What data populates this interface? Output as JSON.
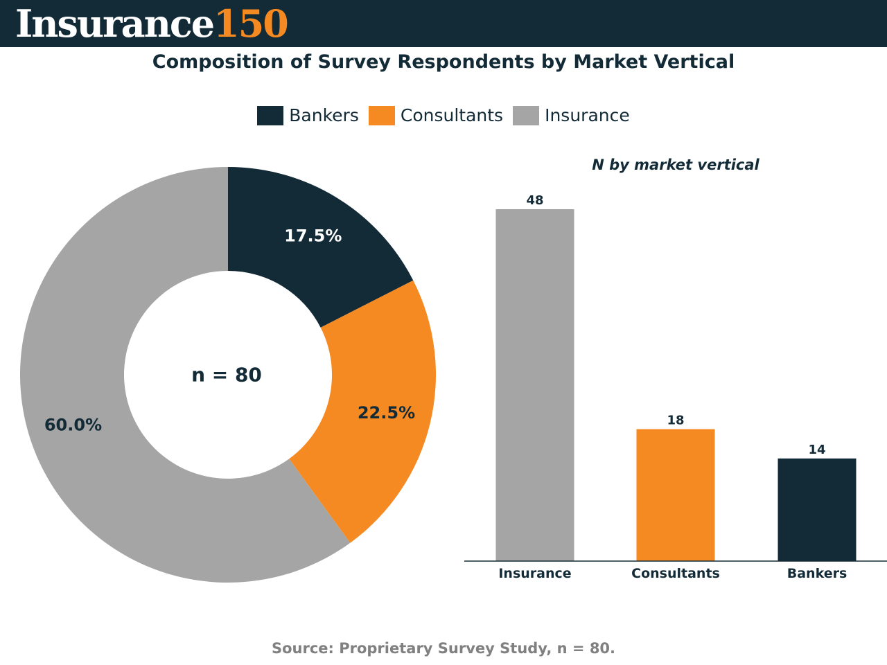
{
  "header": {
    "logo_word": "Insurance",
    "logo_number": "150"
  },
  "colors": {
    "navy": "#132a37",
    "orange": "#f68a22",
    "gray": "#a5a5a5",
    "source_gray": "#808080"
  },
  "chart_data": [
    {
      "type": "pie",
      "title": "Composition of Survey Respondents by Market Vertical",
      "center_label": "n = 80",
      "legend": [
        "Bankers",
        "Consultants",
        "Insurance"
      ],
      "legend_placement": "top",
      "slices": [
        {
          "name": "Bankers",
          "value": 17.5,
          "label": "17.5%",
          "color": "#132a37",
          "label_color": "#ffffff"
        },
        {
          "name": "Consultants",
          "value": 22.5,
          "label": "22.5%",
          "color": "#f68a22",
          "label_color": "#132a37"
        },
        {
          "name": "Insurance",
          "value": 60.0,
          "label": "60.0%",
          "color": "#a5a5a5",
          "label_color": "#132a37"
        }
      ]
    },
    {
      "type": "bar",
      "title": "N by market vertical",
      "categories": [
        "Insurance",
        "Consultants",
        "Bankers"
      ],
      "values": [
        48,
        18,
        14
      ],
      "colors": [
        "#a5a5a5",
        "#f68a22",
        "#132a37"
      ],
      "ylim": [
        0,
        48
      ],
      "grid": false
    }
  ],
  "source": "Source: Proprietary Survey Study, n = 80."
}
